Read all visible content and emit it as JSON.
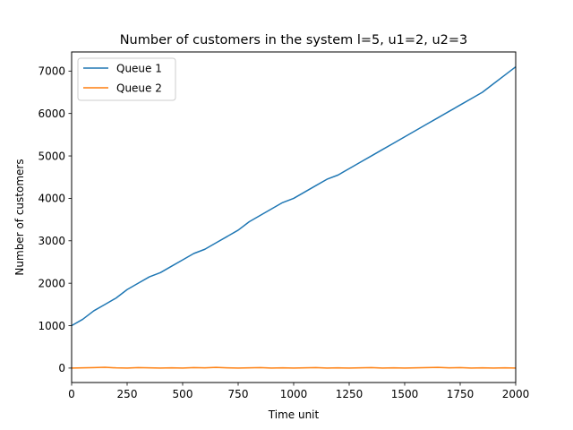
{
  "chart_data": {
    "type": "line",
    "title": "Number of customers in the system l=5, u1=2, u2=3",
    "xlabel": "Time unit",
    "ylabel": "Number of customers",
    "xlim": [
      0,
      2000
    ],
    "ylim": [
      -340,
      7450
    ],
    "xticks": [
      0,
      250,
      500,
      750,
      1000,
      1250,
      1500,
      1750,
      2000
    ],
    "yticks": [
      0,
      1000,
      2000,
      3000,
      4000,
      5000,
      6000,
      7000
    ],
    "grid": false,
    "legend": "top-left",
    "series": [
      {
        "name": "Queue 1",
        "color": "#1f77b4",
        "x": [
          0,
          50,
          100,
          150,
          200,
          250,
          300,
          350,
          400,
          450,
          500,
          550,
          600,
          650,
          700,
          750,
          800,
          850,
          900,
          950,
          1000,
          1050,
          1100,
          1150,
          1200,
          1250,
          1300,
          1350,
          1400,
          1450,
          1500,
          1550,
          1600,
          1650,
          1700,
          1750,
          1800,
          1850,
          1900,
          1950,
          2000
        ],
        "values": [
          1000,
          1150,
          1350,
          1500,
          1650,
          1850,
          2000,
          2150,
          2250,
          2400,
          2550,
          2700,
          2800,
          2950,
          3100,
          3250,
          3450,
          3600,
          3750,
          3900,
          4000,
          4150,
          4300,
          4450,
          4550,
          4700,
          4850,
          5000,
          5150,
          5300,
          5450,
          5600,
          5750,
          5900,
          6050,
          6200,
          6350,
          6500,
          6700,
          6900,
          7100
        ]
      },
      {
        "name": "Queue 2",
        "color": "#ff7f0e",
        "x": [
          0,
          50,
          100,
          150,
          200,
          250,
          300,
          350,
          400,
          450,
          500,
          550,
          600,
          650,
          700,
          750,
          800,
          850,
          900,
          950,
          1000,
          1050,
          1100,
          1150,
          1200,
          1250,
          1300,
          1350,
          1400,
          1450,
          1500,
          1550,
          1600,
          1650,
          1700,
          1750,
          1800,
          1850,
          1900,
          1950,
          2000
        ],
        "values": [
          0,
          5,
          10,
          20,
          5,
          0,
          10,
          5,
          0,
          5,
          0,
          10,
          5,
          15,
          5,
          0,
          5,
          10,
          0,
          5,
          0,
          5,
          10,
          0,
          5,
          0,
          5,
          10,
          0,
          5,
          0,
          5,
          10,
          15,
          5,
          10,
          0,
          5,
          0,
          5,
          0
        ]
      }
    ]
  }
}
